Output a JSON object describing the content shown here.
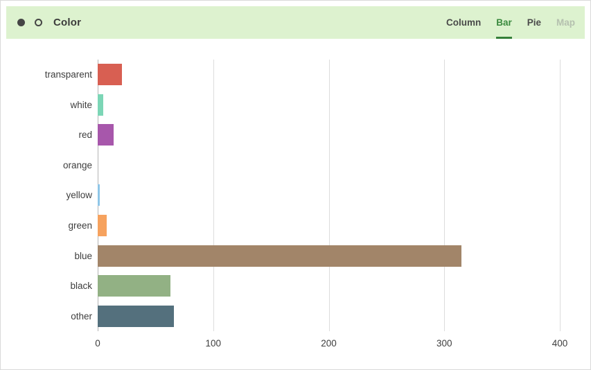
{
  "header": {
    "title": "Color",
    "icons": [
      "filled-dot-icon",
      "hollow-dot-icon"
    ],
    "icon_color": "#454545",
    "background": "#ddf2cf",
    "title_color": "#3b3b3b"
  },
  "tabs": [
    {
      "label": "Column",
      "state": "normal"
    },
    {
      "label": "Bar",
      "state": "active"
    },
    {
      "label": "Pie",
      "state": "normal"
    },
    {
      "label": "Map",
      "state": "disabled"
    }
  ],
  "tab_colors": {
    "normal": "#4a4a4a",
    "active": "#3b8a3f",
    "active_underline": "#357f39",
    "disabled": "#b5c0af"
  },
  "chart_data": {
    "type": "bar",
    "orientation": "horizontal",
    "title": "Color",
    "categories": [
      "transparent",
      "white",
      "red",
      "orange",
      "yellow",
      "green",
      "blue",
      "black",
      "other"
    ],
    "values": [
      21,
      5,
      14,
      0,
      2,
      8,
      315,
      63,
      66
    ],
    "bar_colors": [
      "#d85f52",
      "#7cd6b6",
      "#a757ab",
      null,
      "#8fc6e8",
      "#f6a25e",
      "#a28569",
      "#92b184",
      "#54707d"
    ],
    "xlabel": "",
    "ylabel": "",
    "xlim": [
      0,
      400
    ],
    "x_ticks": [
      0,
      100,
      200,
      300,
      400
    ],
    "grid": true,
    "gridline_color": "#dcdcdc",
    "axis_line_color": "#b3b3b3",
    "legend": "none"
  }
}
